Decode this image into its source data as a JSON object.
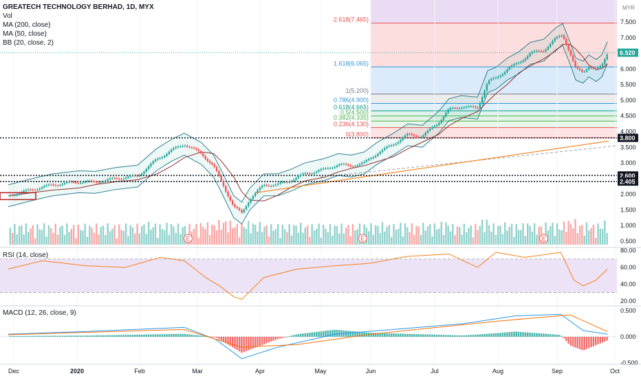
{
  "legend": {
    "title": "GREATECH TECHNOLOGY BERHAD, 1D, MYX",
    "vol": "Vol",
    "ma200": "MA (200, close)",
    "ma50": "MA (50, close)",
    "bb": "BB (20, close, 2)"
  },
  "rsi_label": "RSI (14, close)",
  "macd_label": "MACD (12, 26, close, 9)",
  "currency": "MYR",
  "colors": {
    "up": "#26a69a",
    "down": "#ef5350",
    "ma50": "#8d2d2d",
    "bb": "#2e7f8f",
    "ma200_dash": "#9e9e9e",
    "trend": "#f57f17",
    "rsi": "#f57f17",
    "rsi_band": "#e9dcf5",
    "macd": "#2196f3",
    "signal": "#ff6d00",
    "price_tag": "#26a69a"
  },
  "chart_data": [
    {
      "type": "candlestick",
      "title": "GREATECH TECHNOLOGY BERHAD, 1D, MYX",
      "x_ticks": [
        "Dec",
        "2020",
        "Feb",
        "Mar",
        "Apr",
        "May",
        "Jun",
        "Jul",
        "Aug",
        "Sep",
        "Oct"
      ],
      "y_ticks": [
        "0.500",
        "1.000",
        "1.500",
        "2.000",
        "2.500",
        "3.000",
        "3.500",
        "4.000",
        "4.500",
        "5.000",
        "5.500",
        "6.000",
        "6.500",
        "7.000",
        "7.500"
      ],
      "ylim": [
        0.5,
        7.5
      ],
      "last_price": "6.520",
      "horizontal_levels": [
        "3.800",
        "2.600",
        "2.405"
      ],
      "fibonacci": [
        {
          "label": "0(3.800)",
          "value": 3.8,
          "color": "#e84d4d"
        },
        {
          "label": "0.236(4.130)",
          "value": 4.13,
          "color": "#e84d4d"
        },
        {
          "label": "0.382(4.335)",
          "value": 4.335,
          "color": "#4caf50"
        },
        {
          "label": "0.5(4.500)",
          "value": 4.5,
          "color": "#4caf50"
        },
        {
          "label": "0.618(4.665)",
          "value": 4.665,
          "color": "#089981"
        },
        {
          "label": "0.786(4.900)",
          "value": 4.9,
          "color": "#2f96d6"
        },
        {
          "label": "1(5.200)",
          "value": 5.2,
          "color": "#787b86"
        },
        {
          "label": "1.618(6.065)",
          "value": 6.065,
          "color": "#2f96d6"
        },
        {
          "label": "2.618(7.465)",
          "value": 7.465,
          "color": "#e84d4d"
        }
      ],
      "close_path": [
        {
          "date": "Nov 28",
          "close": 1.95
        },
        {
          "date": "Dec 10",
          "close": 2.15
        },
        {
          "date": "Dec 20",
          "close": 2.3
        },
        {
          "date": "Jan 2",
          "close": 2.4
        },
        {
          "date": "Jan 10",
          "close": 2.38
        },
        {
          "date": "Jan 20",
          "close": 2.5
        },
        {
          "date": "Jan 31",
          "close": 2.58
        },
        {
          "date": "Feb 10",
          "close": 3.1
        },
        {
          "date": "Feb 18",
          "close": 3.4
        },
        {
          "date": "Feb 25",
          "close": 3.6
        },
        {
          "date": "Mar 3",
          "close": 3.3
        },
        {
          "date": "Mar 9",
          "close": 2.9
        },
        {
          "date": "Mar 13",
          "close": 2.4
        },
        {
          "date": "Mar 19",
          "close": 1.6
        },
        {
          "date": "Mar 23",
          "close": 1.4
        },
        {
          "date": "Mar 27",
          "close": 1.85
        },
        {
          "date": "Apr 3",
          "close": 2.3
        },
        {
          "date": "Apr 10",
          "close": 2.3
        },
        {
          "date": "Apr 17",
          "close": 2.45
        },
        {
          "date": "Apr 24",
          "close": 2.65
        },
        {
          "date": "May 4",
          "close": 2.8
        },
        {
          "date": "May 12",
          "close": 2.95
        },
        {
          "date": "May 20",
          "close": 2.9
        },
        {
          "date": "May 28",
          "close": 3.0
        },
        {
          "date": "Jun 4",
          "close": 3.3
        },
        {
          "date": "Jun 12",
          "close": 3.6
        },
        {
          "date": "Jun 19",
          "close": 3.9
        },
        {
          "date": "Jun 26",
          "close": 3.85
        },
        {
          "date": "Jul 3",
          "close": 4.3
        },
        {
          "date": "Jul 8",
          "close": 4.7
        },
        {
          "date": "Jul 14",
          "close": 4.8
        },
        {
          "date": "Jul 22",
          "close": 4.75
        },
        {
          "date": "Jul 27",
          "close": 5.6
        },
        {
          "date": "Jul 31",
          "close": 5.7
        },
        {
          "date": "Aug 6",
          "close": 6.0
        },
        {
          "date": "Aug 12",
          "close": 6.2
        },
        {
          "date": "Aug 18",
          "close": 6.5
        },
        {
          "date": "Aug 25",
          "close": 6.6
        },
        {
          "date": "Aug 31",
          "close": 6.95
        },
        {
          "date": "Sep 4",
          "close": 7.1
        },
        {
          "date": "Sep 8",
          "close": 6.5
        },
        {
          "date": "Sep 11",
          "close": 6.0
        },
        {
          "date": "Sep 15",
          "close": 5.9
        },
        {
          "date": "Sep 18",
          "close": 6.1
        },
        {
          "date": "Sep 22",
          "close": 5.95
        },
        {
          "date": "Sep 25",
          "close": 6.1
        },
        {
          "date": "Sep 28",
          "close": 6.52
        }
      ],
      "earnings_markers": [
        "Feb 27",
        "May 27",
        "Aug 25"
      ],
      "volume_axis": "Vol"
    },
    {
      "type": "line",
      "title": "RSI (14, close)",
      "y_ticks": [
        "20.00",
        "40.00",
        "60.00",
        "80.00"
      ],
      "ylim": [
        20,
        80
      ],
      "band": [
        30,
        70
      ],
      "points": [
        {
          "date": "Nov 28",
          "value": 58
        },
        {
          "date": "Dec 15",
          "value": 68
        },
        {
          "date": "Jan 5",
          "value": 62
        },
        {
          "date": "Jan 25",
          "value": 60
        },
        {
          "date": "Feb 12",
          "value": 72
        },
        {
          "date": "Feb 25",
          "value": 68
        },
        {
          "date": "Mar 5",
          "value": 48
        },
        {
          "date": "Mar 12",
          "value": 38
        },
        {
          "date": "Mar 19",
          "value": 25
        },
        {
          "date": "Mar 23",
          "value": 22
        },
        {
          "date": "Apr 3",
          "value": 48
        },
        {
          "date": "Apr 20",
          "value": 58
        },
        {
          "date": "May 10",
          "value": 62
        },
        {
          "date": "Jun 1",
          "value": 65
        },
        {
          "date": "Jun 18",
          "value": 73
        },
        {
          "date": "Jul 8",
          "value": 76
        },
        {
          "date": "Jul 22",
          "value": 60
        },
        {
          "date": "Jul 31",
          "value": 78
        },
        {
          "date": "Aug 15",
          "value": 72
        },
        {
          "date": "Sep 3",
          "value": 78
        },
        {
          "date": "Sep 10",
          "value": 45
        },
        {
          "date": "Sep 15",
          "value": 38
        },
        {
          "date": "Sep 22",
          "value": 45
        },
        {
          "date": "Sep 28",
          "value": 58
        }
      ]
    },
    {
      "type": "line",
      "title": "MACD (12, 26, close, 9)",
      "y_ticks": [
        "-0.500",
        "0.000",
        "0.500"
      ],
      "ylim": [
        -0.5,
        0.5
      ],
      "series": [
        {
          "name": "MACD",
          "points": [
            {
              "date": "Nov 28",
              "value": 0.05
            },
            {
              "date": "Jan 5",
              "value": 0.1
            },
            {
              "date": "Feb 25",
              "value": 0.18
            },
            {
              "date": "Mar 10",
              "value": -0.05
            },
            {
              "date": "Mar 23",
              "value": -0.42
            },
            {
              "date": "Apr 10",
              "value": -0.2
            },
            {
              "date": "May 10",
              "value": 0.05
            },
            {
              "date": "Jun 15",
              "value": 0.15
            },
            {
              "date": "Jul 15",
              "value": 0.25
            },
            {
              "date": "Aug 10",
              "value": 0.4
            },
            {
              "date": "Sep 3",
              "value": 0.43
            },
            {
              "date": "Sep 15",
              "value": 0.12
            },
            {
              "date": "Sep 28",
              "value": 0.05
            }
          ]
        },
        {
          "name": "Signal",
          "points": [
            {
              "date": "Nov 28",
              "value": 0.04
            },
            {
              "date": "Feb 25",
              "value": 0.14
            },
            {
              "date": "Mar 23",
              "value": -0.2
            },
            {
              "date": "Apr 20",
              "value": -0.15
            },
            {
              "date": "Jun 1",
              "value": 0.05
            },
            {
              "date": "Aug 1",
              "value": 0.3
            },
            {
              "date": "Sep 8",
              "value": 0.42
            },
            {
              "date": "Sep 28",
              "value": 0.1
            }
          ]
        }
      ]
    }
  ]
}
